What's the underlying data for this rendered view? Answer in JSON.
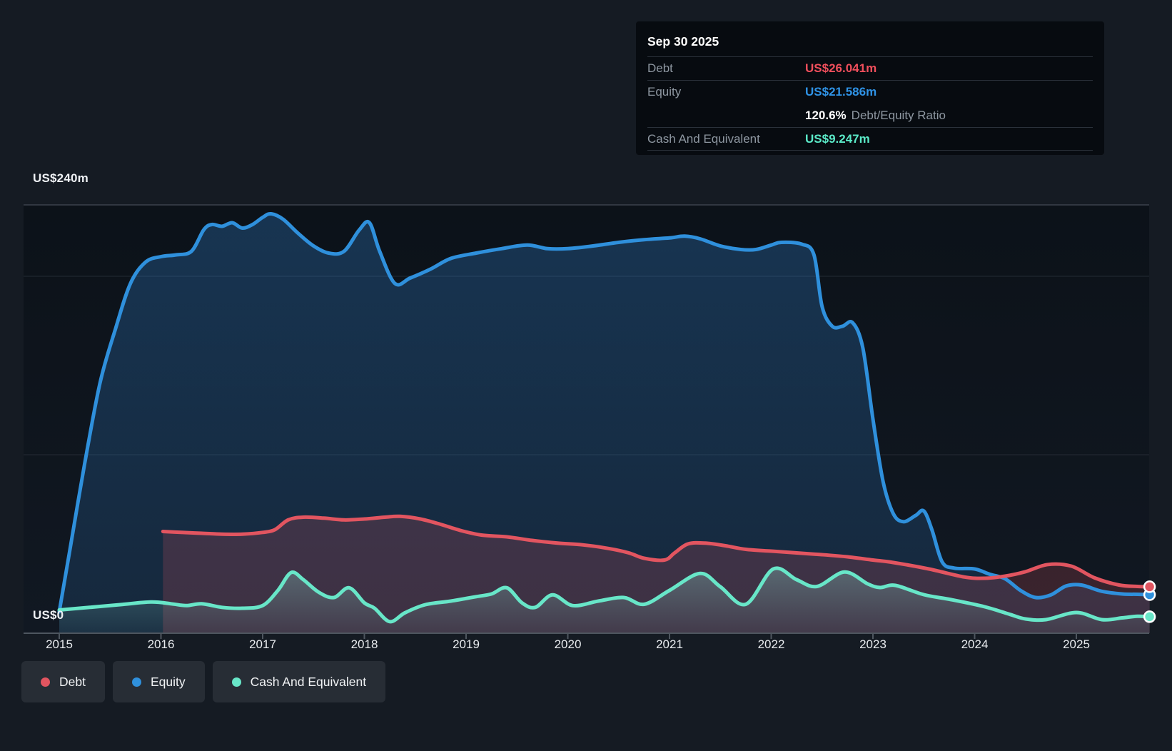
{
  "y_axis": {
    "top_label": "US$240m",
    "zero_label": "US$0"
  },
  "x_axis": {
    "labels": [
      "2015",
      "2016",
      "2017",
      "2018",
      "2019",
      "2020",
      "2021",
      "2022",
      "2023",
      "2024",
      "2025"
    ]
  },
  "tooltip": {
    "title": "Sep 30 2025",
    "debt_label": "Debt",
    "debt_value": "US$26.041m",
    "equity_label": "Equity",
    "equity_value": "US$21.586m",
    "ratio_value": "120.6%",
    "ratio_label": "Debt/Equity Ratio",
    "cash_label": "Cash And Equivalent",
    "cash_value": "US$9.247m"
  },
  "legend": [
    {
      "label": "Debt",
      "color": "#e25560"
    },
    {
      "label": "Equity",
      "color": "#2f90dc"
    },
    {
      "label": "Cash And Equivalent",
      "color": "#68e6c8"
    }
  ],
  "colors": {
    "background": "#151b23",
    "plot_top": "#0c1219",
    "plot_bottom": "#111822",
    "grid_major": "#3c434d",
    "grid_minor": "#242b34",
    "axis": "#4e565f",
    "debt": "#e25560",
    "equity": "#2f90dc",
    "cash": "#68e6c8"
  },
  "chart_data": {
    "type": "area",
    "x_ticks": [
      2015,
      2016,
      2017,
      2018,
      2019,
      2020,
      2021,
      2022,
      2023,
      2024,
      2025
    ],
    "xlabel": "",
    "ylabel": "US$ millions",
    "ylim": [
      0,
      240
    ],
    "y_gridlines": [
      240,
      200,
      100,
      0
    ],
    "legend_position": "bottom-left",
    "last_point_date": "Sep 30 2025",
    "series": [
      {
        "name": "Equity",
        "color": "#2f90dc",
        "end_value_label": "US$21.586m",
        "points": [
          [
            2015.0,
            12
          ],
          [
            2015.1,
            45
          ],
          [
            2015.25,
            95
          ],
          [
            2015.4,
            140
          ],
          [
            2015.55,
            170
          ],
          [
            2015.7,
            196
          ],
          [
            2015.85,
            208
          ],
          [
            2016.0,
            211
          ],
          [
            2016.15,
            212
          ],
          [
            2016.3,
            214
          ],
          [
            2016.42,
            226
          ],
          [
            2016.5,
            229
          ],
          [
            2016.6,
            228
          ],
          [
            2016.7,
            230
          ],
          [
            2016.8,
            227
          ],
          [
            2016.9,
            229
          ],
          [
            2017.0,
            233
          ],
          [
            2017.08,
            235
          ],
          [
            2017.2,
            232
          ],
          [
            2017.35,
            224
          ],
          [
            2017.5,
            217
          ],
          [
            2017.65,
            213
          ],
          [
            2017.8,
            214
          ],
          [
            2017.95,
            226
          ],
          [
            2018.05,
            230
          ],
          [
            2018.15,
            214
          ],
          [
            2018.3,
            196
          ],
          [
            2018.45,
            199
          ],
          [
            2018.65,
            204
          ],
          [
            2018.85,
            210
          ],
          [
            2019.1,
            213
          ],
          [
            2019.35,
            215.5
          ],
          [
            2019.6,
            217.5
          ],
          [
            2019.8,
            215.5
          ],
          [
            2020.0,
            215.5
          ],
          [
            2020.25,
            217
          ],
          [
            2020.5,
            219
          ],
          [
            2020.75,
            220.5
          ],
          [
            2021.0,
            221.5
          ],
          [
            2021.15,
            222.5
          ],
          [
            2021.3,
            221
          ],
          [
            2021.5,
            217
          ],
          [
            2021.7,
            215
          ],
          [
            2021.85,
            215
          ],
          [
            2022.0,
            217.5
          ],
          [
            2022.1,
            219
          ],
          [
            2022.3,
            218
          ],
          [
            2022.42,
            212
          ],
          [
            2022.5,
            183
          ],
          [
            2022.6,
            172
          ],
          [
            2022.7,
            172
          ],
          [
            2022.8,
            174
          ],
          [
            2022.9,
            160
          ],
          [
            2023.0,
            120
          ],
          [
            2023.1,
            85
          ],
          [
            2023.2,
            67
          ],
          [
            2023.3,
            62.5
          ],
          [
            2023.42,
            66
          ],
          [
            2023.5,
            68.5
          ],
          [
            2023.58,
            58
          ],
          [
            2023.68,
            40
          ],
          [
            2023.8,
            36.5
          ],
          [
            2024.0,
            36
          ],
          [
            2024.15,
            33
          ],
          [
            2024.3,
            30.5
          ],
          [
            2024.45,
            24
          ],
          [
            2024.6,
            20
          ],
          [
            2024.75,
            21.5
          ],
          [
            2024.9,
            26.5
          ],
          [
            2025.05,
            27
          ],
          [
            2025.25,
            23.5
          ],
          [
            2025.45,
            22
          ],
          [
            2025.6,
            21.8
          ],
          [
            2025.72,
            21.586
          ]
        ]
      },
      {
        "name": "Debt",
        "color": "#e25560",
        "end_value_label": "US$26.041m",
        "points": [
          [
            2016.02,
            57
          ],
          [
            2016.2,
            56.5
          ],
          [
            2016.4,
            56
          ],
          [
            2016.6,
            55.5
          ],
          [
            2016.8,
            55.5
          ],
          [
            2017.0,
            56.5
          ],
          [
            2017.12,
            58
          ],
          [
            2017.25,
            63.5
          ],
          [
            2017.4,
            65
          ],
          [
            2017.6,
            64.5
          ],
          [
            2017.8,
            63.5
          ],
          [
            2018.0,
            64
          ],
          [
            2018.2,
            65
          ],
          [
            2018.35,
            65.5
          ],
          [
            2018.55,
            64
          ],
          [
            2018.75,
            61
          ],
          [
            2018.95,
            57.5
          ],
          [
            2019.15,
            55
          ],
          [
            2019.4,
            54
          ],
          [
            2019.65,
            52
          ],
          [
            2019.9,
            50.5
          ],
          [
            2020.15,
            49.5
          ],
          [
            2020.4,
            47.5
          ],
          [
            2020.6,
            45
          ],
          [
            2020.75,
            42
          ],
          [
            2020.95,
            41
          ],
          [
            2021.05,
            45
          ],
          [
            2021.18,
            50
          ],
          [
            2021.35,
            50.5
          ],
          [
            2021.55,
            49
          ],
          [
            2021.75,
            47
          ],
          [
            2022.0,
            46
          ],
          [
            2022.25,
            45
          ],
          [
            2022.5,
            44
          ],
          [
            2022.75,
            42.8
          ],
          [
            2023.0,
            41
          ],
          [
            2023.2,
            39.6
          ],
          [
            2023.55,
            36
          ],
          [
            2023.9,
            31.5
          ],
          [
            2024.1,
            30.8
          ],
          [
            2024.3,
            32
          ],
          [
            2024.5,
            34.5
          ],
          [
            2024.72,
            38.5
          ],
          [
            2024.95,
            37.6
          ],
          [
            2025.18,
            31
          ],
          [
            2025.42,
            27
          ],
          [
            2025.6,
            26.2
          ],
          [
            2025.72,
            26.041
          ]
        ]
      },
      {
        "name": "Cash And Equivalent",
        "color": "#68e6c8",
        "end_value_label": "US$9.247m",
        "points": [
          [
            2015.0,
            13
          ],
          [
            2015.3,
            14.5
          ],
          [
            2015.6,
            16
          ],
          [
            2015.9,
            17.5
          ],
          [
            2016.1,
            16.5
          ],
          [
            2016.25,
            15.5
          ],
          [
            2016.4,
            16.5
          ],
          [
            2016.6,
            14.5
          ],
          [
            2016.8,
            14
          ],
          [
            2017.0,
            15.5
          ],
          [
            2017.15,
            24
          ],
          [
            2017.28,
            34
          ],
          [
            2017.4,
            30
          ],
          [
            2017.55,
            23
          ],
          [
            2017.7,
            20
          ],
          [
            2017.85,
            25.5
          ],
          [
            2018.0,
            17
          ],
          [
            2018.1,
            14
          ],
          [
            2018.25,
            6.5
          ],
          [
            2018.4,
            11.5
          ],
          [
            2018.6,
            16
          ],
          [
            2018.85,
            18
          ],
          [
            2019.1,
            20.5
          ],
          [
            2019.25,
            22
          ],
          [
            2019.4,
            25.5
          ],
          [
            2019.55,
            17
          ],
          [
            2019.68,
            14.5
          ],
          [
            2019.85,
            21.5
          ],
          [
            2020.05,
            15.5
          ],
          [
            2020.3,
            18
          ],
          [
            2020.55,
            20
          ],
          [
            2020.75,
            16.2
          ],
          [
            2021.0,
            24
          ],
          [
            2021.3,
            33.5
          ],
          [
            2021.5,
            26
          ],
          [
            2021.75,
            16.2
          ],
          [
            2022.02,
            36
          ],
          [
            2022.25,
            30
          ],
          [
            2022.45,
            26.2
          ],
          [
            2022.72,
            34.3
          ],
          [
            2022.95,
            27.6
          ],
          [
            2023.07,
            25.6
          ],
          [
            2023.22,
            26.8
          ],
          [
            2023.5,
            21.6
          ],
          [
            2023.77,
            18.8
          ],
          [
            2024.1,
            14.8
          ],
          [
            2024.35,
            10.5
          ],
          [
            2024.5,
            8
          ],
          [
            2024.7,
            7.6
          ],
          [
            2025.0,
            11.6
          ],
          [
            2025.25,
            7.6
          ],
          [
            2025.45,
            8.6
          ],
          [
            2025.6,
            9.5
          ],
          [
            2025.72,
            9.247
          ]
        ]
      }
    ]
  }
}
